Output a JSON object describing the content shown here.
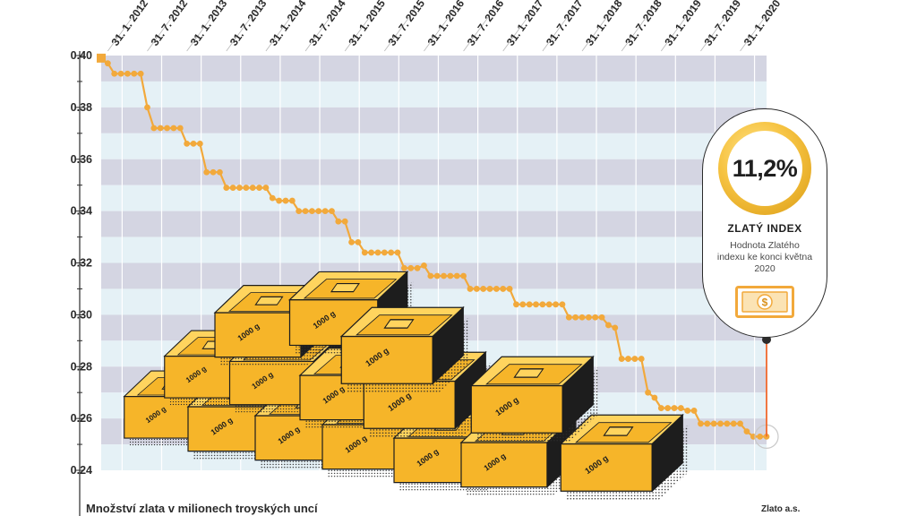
{
  "chart_data": {
    "type": "line",
    "caption": "Množství zlata v milionech troyských uncí",
    "source": "Zlato a.s.",
    "x_tick_labels": [
      "31. 1. 2012",
      "31. 7. 2012",
      "31. 1. 2013",
      "31. 7. 2013",
      "31. 1. 2014",
      "31. 7. 2014",
      "31. 1. 2015",
      "31. 7. 2015",
      "31. 1. 2016",
      "31. 7. 2016",
      "31. 1. 2017",
      "31. 7. 2017",
      "31. 1. 2018",
      "31. 7. 2018",
      "31. 1. 2019",
      "31. 7. 2019",
      "31. 1. 2020"
    ],
    "y_tick_labels": [
      "0.40",
      "0.38",
      "0.36",
      "0.34",
      "0.32",
      "0.30",
      "0.28",
      "0.26",
      "0.24"
    ],
    "ylim": [
      0.24,
      0.4
    ],
    "xlim": [
      "2011-12",
      "2020-05"
    ],
    "grid": true,
    "series": [
      {
        "name": "",
        "color": "#f2a93b",
        "points": [
          [
            "2011-12",
            0.399
          ],
          [
            "2012-01",
            0.397
          ],
          [
            "2012-02",
            0.393
          ],
          [
            "2012-03",
            0.393
          ],
          [
            "2012-04",
            0.393
          ],
          [
            "2012-05",
            0.393
          ],
          [
            "2012-06",
            0.393
          ],
          [
            "2012-07",
            0.38
          ],
          [
            "2012-08",
            0.372
          ],
          [
            "2012-09",
            0.372
          ],
          [
            "2012-10",
            0.372
          ],
          [
            "2012-11",
            0.372
          ],
          [
            "2012-12",
            0.372
          ],
          [
            "2013-01",
            0.366
          ],
          [
            "2013-02",
            0.366
          ],
          [
            "2013-03",
            0.366
          ],
          [
            "2013-04",
            0.355
          ],
          [
            "2013-05",
            0.355
          ],
          [
            "2013-06",
            0.355
          ],
          [
            "2013-07",
            0.349
          ],
          [
            "2013-08",
            0.349
          ],
          [
            "2013-09",
            0.349
          ],
          [
            "2013-10",
            0.349
          ],
          [
            "2013-11",
            0.349
          ],
          [
            "2013-12",
            0.349
          ],
          [
            "2014-01",
            0.349
          ],
          [
            "2014-02",
            0.345
          ],
          [
            "2014-03",
            0.344
          ],
          [
            "2014-04",
            0.344
          ],
          [
            "2014-05",
            0.344
          ],
          [
            "2014-06",
            0.34
          ],
          [
            "2014-07",
            0.34
          ],
          [
            "2014-08",
            0.34
          ],
          [
            "2014-09",
            0.34
          ],
          [
            "2014-10",
            0.34
          ],
          [
            "2014-11",
            0.34
          ],
          [
            "2014-12",
            0.336
          ],
          [
            "2015-01",
            0.336
          ],
          [
            "2015-02",
            0.328
          ],
          [
            "2015-03",
            0.328
          ],
          [
            "2015-04",
            0.324
          ],
          [
            "2015-05",
            0.324
          ],
          [
            "2015-06",
            0.324
          ],
          [
            "2015-07",
            0.324
          ],
          [
            "2015-08",
            0.324
          ],
          [
            "2015-09",
            0.324
          ],
          [
            "2015-10",
            0.318
          ],
          [
            "2015-11",
            0.318
          ],
          [
            "2015-12",
            0.318
          ],
          [
            "2016-01",
            0.319
          ],
          [
            "2016-02",
            0.315
          ],
          [
            "2016-03",
            0.315
          ],
          [
            "2016-04",
            0.315
          ],
          [
            "2016-05",
            0.315
          ],
          [
            "2016-06",
            0.315
          ],
          [
            "2016-07",
            0.315
          ],
          [
            "2016-08",
            0.31
          ],
          [
            "2016-09",
            0.31
          ],
          [
            "2016-10",
            0.31
          ],
          [
            "2016-11",
            0.31
          ],
          [
            "2016-12",
            0.31
          ],
          [
            "2017-01",
            0.31
          ],
          [
            "2017-02",
            0.31
          ],
          [
            "2017-03",
            0.304
          ],
          [
            "2017-04",
            0.304
          ],
          [
            "2017-05",
            0.304
          ],
          [
            "2017-06",
            0.304
          ],
          [
            "2017-07",
            0.304
          ],
          [
            "2017-08",
            0.304
          ],
          [
            "2017-09",
            0.304
          ],
          [
            "2017-10",
            0.304
          ],
          [
            "2017-11",
            0.299
          ],
          [
            "2017-12",
            0.299
          ],
          [
            "2018-01",
            0.299
          ],
          [
            "2018-02",
            0.299
          ],
          [
            "2018-03",
            0.299
          ],
          [
            "2018-04",
            0.299
          ],
          [
            "2018-05",
            0.296
          ],
          [
            "2018-06",
            0.295
          ],
          [
            "2018-07",
            0.283
          ],
          [
            "2018-08",
            0.283
          ],
          [
            "2018-09",
            0.283
          ],
          [
            "2018-10",
            0.283
          ],
          [
            "2018-11",
            0.27
          ],
          [
            "2018-12",
            0.268
          ],
          [
            "2019-01",
            0.264
          ],
          [
            "2019-02",
            0.264
          ],
          [
            "2019-03",
            0.264
          ],
          [
            "2019-04",
            0.264
          ],
          [
            "2019-05",
            0.263
          ],
          [
            "2019-06",
            0.263
          ],
          [
            "2019-07",
            0.258
          ],
          [
            "2019-08",
            0.258
          ],
          [
            "2019-09",
            0.258
          ],
          [
            "2019-10",
            0.258
          ],
          [
            "2019-11",
            0.258
          ],
          [
            "2019-12",
            0.258
          ],
          [
            "2020-01",
            0.258
          ],
          [
            "2020-02",
            0.255
          ],
          [
            "2020-03",
            0.253
          ],
          [
            "2020-04",
            0.253
          ],
          [
            "2020-05",
            0.253
          ]
        ]
      }
    ]
  },
  "callout": {
    "value": "11,2%",
    "title": "ZLATÝ INDEX",
    "text": "Hodnota Zlatého indexu ke konci května 2020",
    "bill_symbol": "$"
  },
  "bar_label": "1000 g",
  "colors": {
    "line": "#f2a93b",
    "band_dark": "#d4d5e2",
    "band_light": "#e5f1f6",
    "gold": "#f6b529",
    "gold_light": "#ffd45e",
    "gold_dark": "#d7901a",
    "bar_side": "#1d1d1d"
  }
}
